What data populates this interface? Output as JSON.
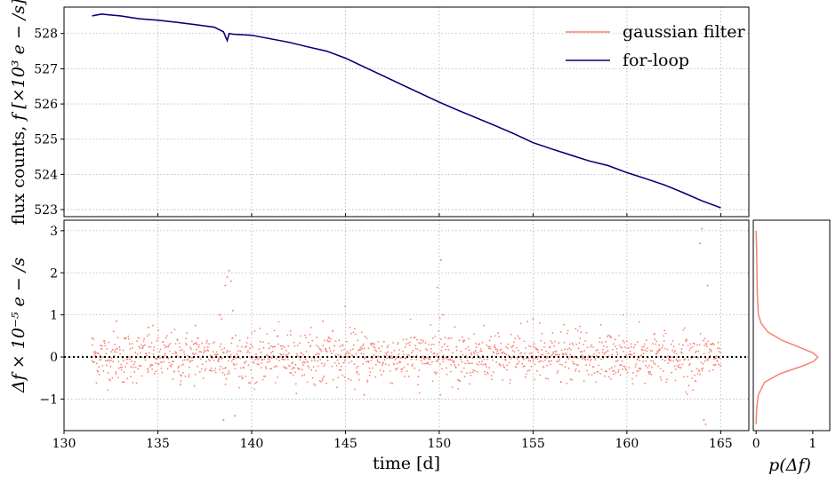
{
  "chart_data": [
    {
      "type": "line",
      "xlim": [
        130,
        166.5
      ],
      "ylim": [
        522.8,
        528.75
      ],
      "ylabel_text": "flux counts, ",
      "ylabel_math": "f [×10³ e − /s]",
      "yticks": [
        523,
        524,
        525,
        526,
        527,
        528
      ],
      "grid": true,
      "legend": {
        "placement": "top-right",
        "entries": [
          "gaussian filter",
          "for-loop"
        ]
      },
      "colors": {
        "gaussian filter": "#fa8072",
        "for-loop": "#000080"
      },
      "series": [
        {
          "name": "gaussian filter",
          "x": [
            131.5,
            132.0,
            133.0,
            134.0,
            135.0,
            136.0,
            137.0,
            138.0,
            138.5,
            138.7,
            138.8,
            139.0,
            140.0,
            141.0,
            142.0,
            143.0,
            144.0,
            145.0,
            146.0,
            147.0,
            148.0,
            149.0,
            150.0,
            151.0,
            152.0,
            153.0,
            154.0,
            155.0,
            156.0,
            157.0,
            158.0,
            159.0,
            160.0,
            161.0,
            162.0,
            163.0,
            164.0,
            164.5,
            165.0
          ],
          "y": [
            528.5,
            528.55,
            528.5,
            528.42,
            528.38,
            528.32,
            528.25,
            528.18,
            528.05,
            527.8,
            528.0,
            527.98,
            527.95,
            527.85,
            527.75,
            527.62,
            527.5,
            527.3,
            527.05,
            526.8,
            526.55,
            526.3,
            526.05,
            525.82,
            525.6,
            525.38,
            525.15,
            524.9,
            524.72,
            524.55,
            524.38,
            524.25,
            524.05,
            523.88,
            523.7,
            523.48,
            523.25,
            523.15,
            523.05
          ]
        },
        {
          "name": "for-loop",
          "x": [
            131.5,
            132.0,
            133.0,
            134.0,
            135.0,
            136.0,
            137.0,
            138.0,
            138.5,
            138.7,
            138.8,
            139.0,
            140.0,
            141.0,
            142.0,
            143.0,
            144.0,
            145.0,
            146.0,
            147.0,
            148.0,
            149.0,
            150.0,
            151.0,
            152.0,
            153.0,
            154.0,
            155.0,
            156.0,
            157.0,
            158.0,
            159.0,
            160.0,
            161.0,
            162.0,
            163.0,
            164.0,
            164.5,
            165.0
          ],
          "y": [
            528.5,
            528.55,
            528.5,
            528.42,
            528.38,
            528.32,
            528.25,
            528.18,
            528.05,
            527.8,
            528.0,
            527.98,
            527.95,
            527.85,
            527.75,
            527.62,
            527.5,
            527.3,
            527.05,
            526.8,
            526.55,
            526.3,
            526.05,
            525.82,
            525.6,
            525.38,
            525.15,
            524.9,
            524.72,
            524.55,
            524.38,
            524.25,
            524.05,
            523.88,
            523.7,
            523.48,
            523.25,
            523.15,
            523.05
          ]
        }
      ]
    },
    {
      "type": "scatter",
      "xlim": [
        130,
        166.5
      ],
      "ylim": [
        -1.75,
        3.25
      ],
      "xlabel": "time [d]",
      "ylabel_math": "Δf × 10⁻⁵ e − /s",
      "xticks": [
        130,
        135,
        140,
        145,
        150,
        155,
        160,
        165
      ],
      "xtick_labels": [
        "130",
        "135",
        "140",
        "145",
        "150",
        "155",
        "160",
        "165"
      ],
      "yticks": [
        -1,
        0,
        1,
        2,
        3
      ],
      "ytick_labels": [
        "−1",
        "0",
        "1",
        "2",
        "3"
      ],
      "grid": true,
      "reference_line": {
        "y": 0,
        "style": "dotted",
        "color": "#000000"
      },
      "series": [
        {
          "name": "gaussian filter",
          "color": "#fa8072",
          "x": [
            131.5,
            132.8,
            133.2,
            134.5,
            136.2,
            137.0,
            138.3,
            138.4,
            138.5,
            138.6,
            138.7,
            138.8,
            138.9,
            139.0,
            139.1,
            143.8,
            145.0,
            146.0,
            149.9,
            150.1,
            150.2,
            155.0,
            159.8,
            163.9,
            164.0,
            164.1,
            164.2,
            164.3
          ],
          "y": [
            0.45,
            0.85,
            -0.6,
            0.7,
            -0.65,
            0.75,
            1.0,
            0.9,
            -1.5,
            1.7,
            1.9,
            2.05,
            1.8,
            1.1,
            -1.4,
            0.85,
            1.2,
            -0.9,
            1.65,
            2.3,
            1.0,
            0.9,
            1.0,
            2.7,
            3.05,
            -1.5,
            -1.6,
            1.7
          ],
          "bulk_scatter": {
            "x_range": [
              131.5,
              165.0
            ],
            "spread_y": 0.3,
            "max_abs_y": 0.95
          }
        }
      ]
    },
    {
      "type": "line",
      "orientation": "vertical",
      "xlim": [
        -0.05,
        1.3
      ],
      "ylim": [
        -1.75,
        3.25
      ],
      "xlabel_math": "p(Δf)",
      "xticks": [
        0,
        1
      ],
      "xtick_labels": [
        "0",
        "1"
      ],
      "series": [
        {
          "name": "gaussian filter",
          "color": "#fa8072",
          "y": [
            -1.6,
            -1.2,
            -0.9,
            -0.6,
            -0.4,
            -0.2,
            -0.1,
            0.0,
            0.1,
            0.2,
            0.4,
            0.6,
            0.8,
            1.0,
            1.5,
            2.0,
            2.5,
            3.0
          ],
          "p": [
            0.0,
            0.01,
            0.04,
            0.15,
            0.42,
            0.85,
            1.02,
            1.09,
            1.0,
            0.82,
            0.45,
            0.2,
            0.09,
            0.04,
            0.02,
            0.015,
            0.01,
            0.0
          ]
        }
      ]
    }
  ]
}
